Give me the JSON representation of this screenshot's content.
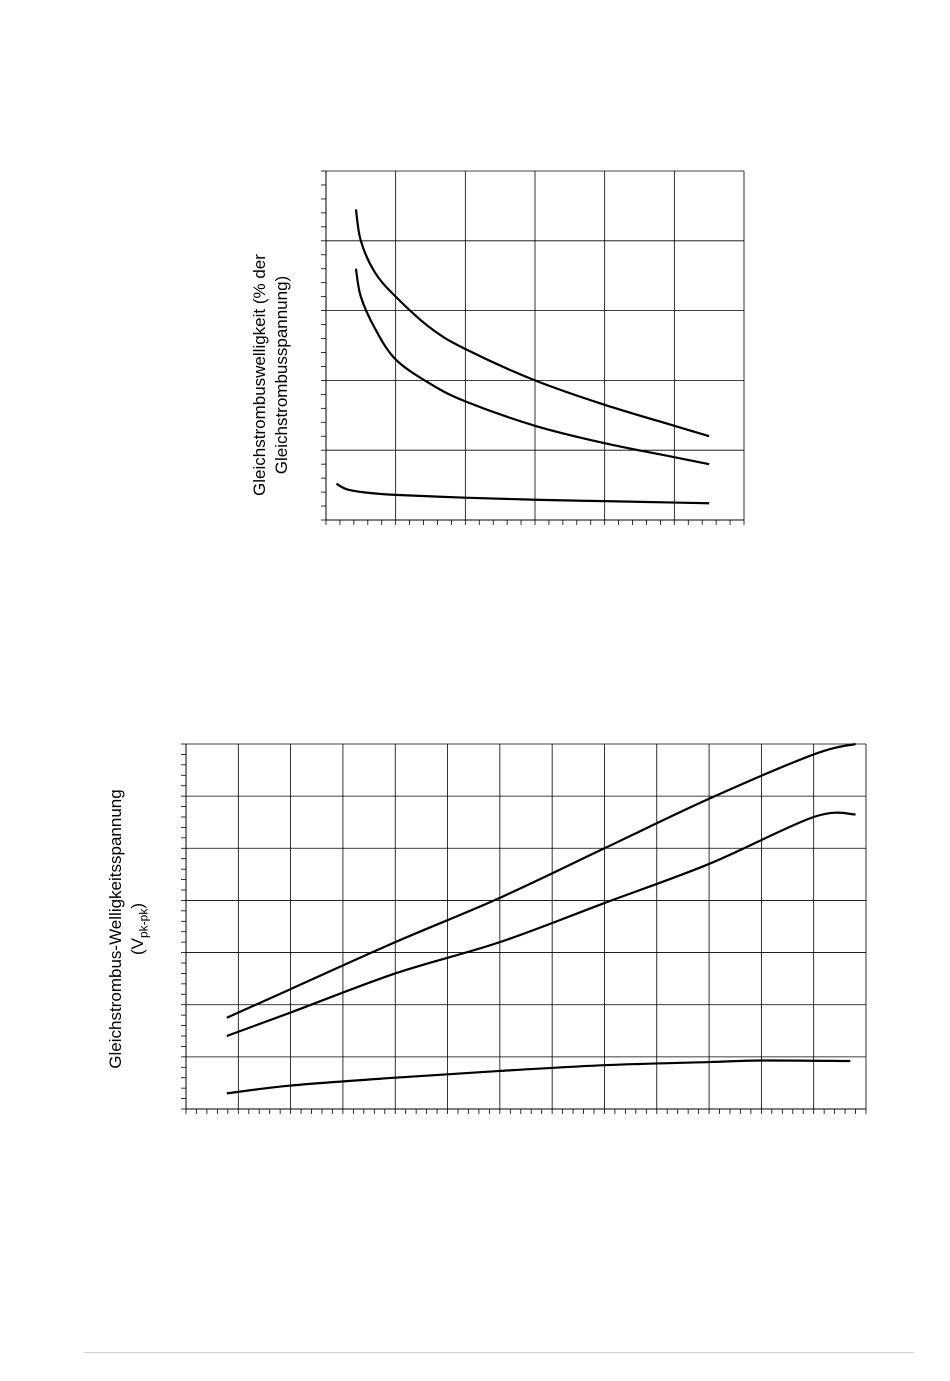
{
  "chart_data": [
    {
      "type": "line",
      "title": "",
      "ylabel_line1": "Gleichstrombuswelligkeit (% der",
      "ylabel_line2": "Gleichstrombusspannung)",
      "xlabel": "",
      "xlim": [
        0,
        6
      ],
      "ylim": [
        0,
        5
      ],
      "x_major_step": 1,
      "x_minor_per_major": 5,
      "y_major_step": 1,
      "y_minor_per_major": 5,
      "grid": true,
      "series": [
        {
          "x": [
            0.43,
            0.5,
            0.7,
            1.0,
            1.5,
            2.0,
            3.0,
            4.0,
            5.0,
            5.5
          ],
          "y": [
            4.45,
            4.0,
            3.55,
            3.2,
            2.75,
            2.45,
            2.0,
            1.65,
            1.35,
            1.2
          ]
        },
        {
          "x": [
            0.43,
            0.5,
            0.7,
            1.0,
            1.5,
            2.0,
            3.0,
            4.0,
            5.0,
            5.5
          ],
          "y": [
            3.6,
            3.2,
            2.75,
            2.3,
            1.95,
            1.7,
            1.35,
            1.1,
            0.9,
            0.8
          ]
        },
        {
          "x": [
            0.15,
            0.3,
            0.6,
            1.0,
            2.0,
            3.0,
            4.0,
            5.0,
            5.5
          ],
          "y": [
            0.52,
            0.44,
            0.39,
            0.36,
            0.32,
            0.29,
            0.27,
            0.25,
            0.24
          ]
        }
      ]
    },
    {
      "type": "line",
      "title": "",
      "ylabel_line1": "Gleichstrombus-Welligkeitsspannung",
      "ylabel_line2_main": "(V",
      "ylabel_line2_sub": "pk-pk",
      "ylabel_line2_end": ")",
      "xlabel": "",
      "xlim": [
        0,
        13
      ],
      "ylim": [
        0,
        7
      ],
      "x_major_step": 1,
      "x_minor_per_major": 5,
      "y_major_step": 1,
      "y_minor_per_major": 5,
      "grid": true,
      "series": [
        {
          "x": [
            0.78,
            2,
            4,
            6,
            8,
            10,
            12,
            12.8
          ],
          "y": [
            1.75,
            2.3,
            3.2,
            4.05,
            5.0,
            5.95,
            6.8,
            7.0
          ]
        },
        {
          "x": [
            0.78,
            2,
            4,
            6,
            8,
            10,
            12,
            12.8
          ],
          "y": [
            1.4,
            1.85,
            2.6,
            3.2,
            3.95,
            4.7,
            5.6,
            5.65
          ]
        },
        {
          "x": [
            0.78,
            2,
            4,
            6,
            8,
            10,
            11,
            12.7
          ],
          "y": [
            0.3,
            0.45,
            0.6,
            0.73,
            0.84,
            0.9,
            0.93,
            0.92
          ]
        }
      ]
    }
  ]
}
